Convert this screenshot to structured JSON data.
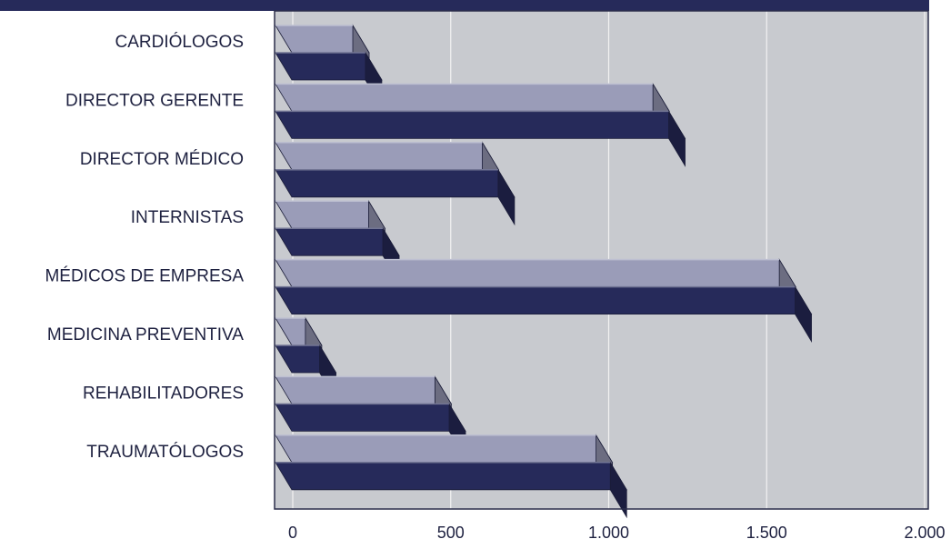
{
  "chart_data": {
    "type": "bar",
    "orientation": "horizontal",
    "style": "3d",
    "categories": [
      "CARDIÓLOGOS",
      "DIRECTOR GERENTE",
      "DIRECTOR MÉDICO",
      "INTERNISTAS",
      "MÉDICOS DE EMPRESA",
      "MEDICINA PREVENTIVA",
      "REHABILITADORES",
      "TRAUMATÓLOGOS"
    ],
    "series": [
      {
        "values": [
          190,
          1140,
          600,
          240,
          1540,
          40,
          450,
          960
        ],
        "color": "#9a9cb8"
      },
      {
        "values": [
          230,
          1190,
          650,
          285,
          1590,
          85,
          495,
          1005
        ],
        "color": "#262a5a"
      }
    ],
    "xlim": [
      0,
      2000
    ],
    "xticks": [
      "0",
      "500",
      "1.000",
      "1.500",
      "2.000"
    ],
    "title": "",
    "xlabel": "",
    "ylabel": "",
    "grid": "vertical",
    "legend": "none",
    "colors": {
      "background": "#c8cacf",
      "gridline": "#f2f2f2",
      "frame": "#2a2d4a",
      "header_band": "#262a5a",
      "text": "#1e2140"
    }
  }
}
